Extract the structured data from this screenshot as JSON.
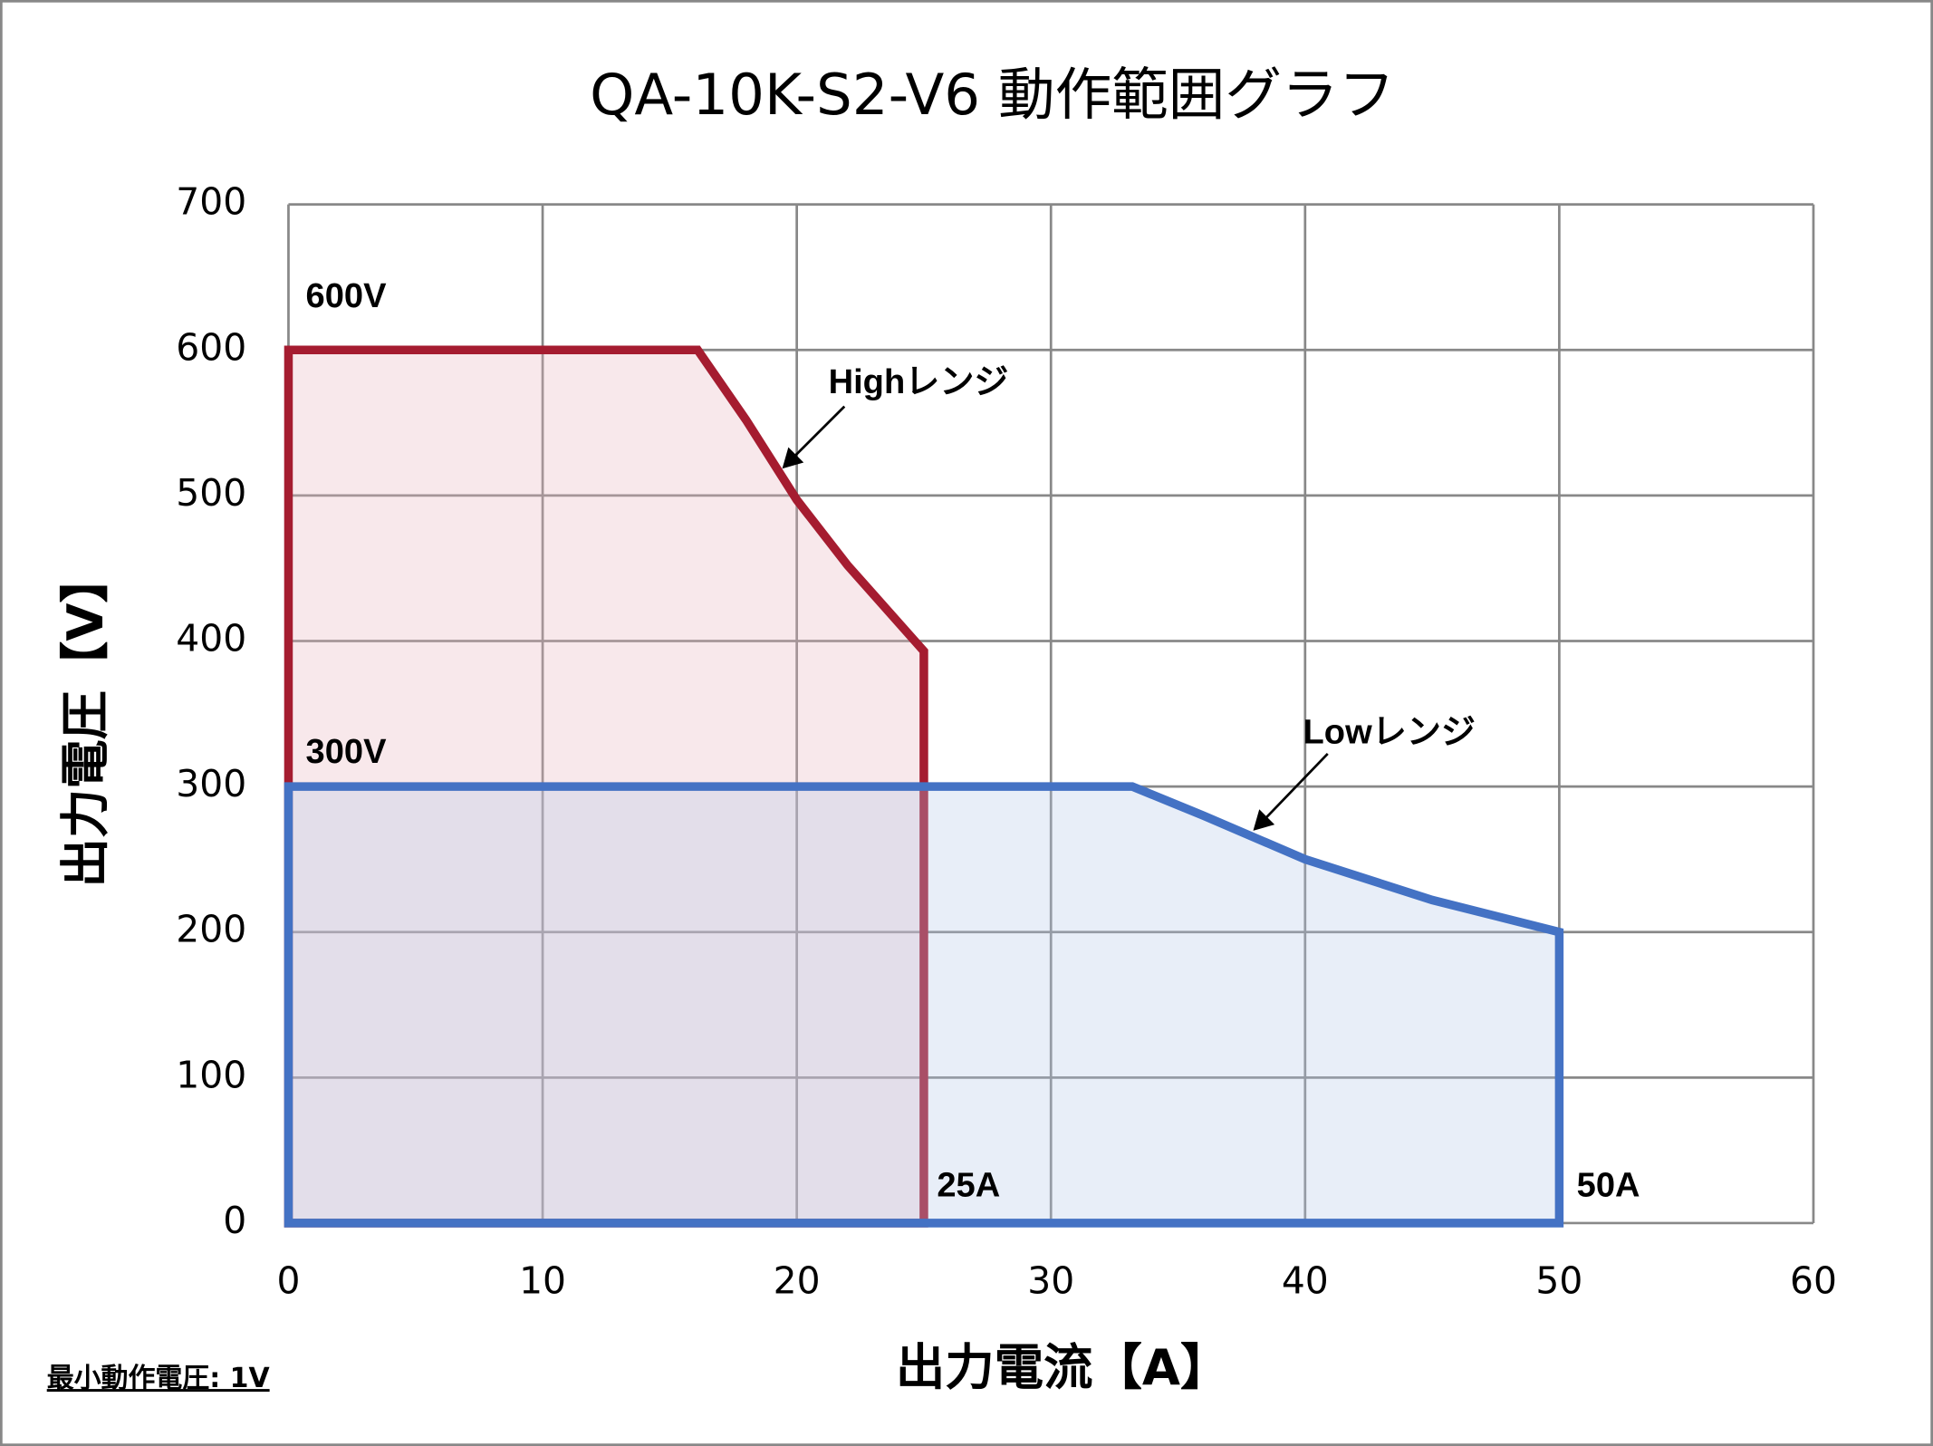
{
  "chart_data": {
    "type": "area",
    "title": "QA-10K-S2-V6  動作範囲グラフ",
    "x_label": "出力電流【A】",
    "y_label": "出力電圧【V】",
    "xlim": [
      0,
      60
    ],
    "xticks": [
      0,
      10,
      20,
      30,
      40,
      50,
      60
    ],
    "ylim": [
      0,
      700
    ],
    "yticks": [
      0,
      100,
      200,
      300,
      400,
      500,
      600,
      700
    ],
    "grid": true,
    "series": [
      {
        "name": "Highレンジ",
        "color": "#a51c30",
        "fill_color": "#e8b4bc",
        "x": [
          0,
          16.1,
          18,
          20,
          22,
          25,
          25,
          0
        ],
        "values": [
          600,
          600,
          552,
          497,
          452,
          393,
          0,
          0
        ]
      },
      {
        "name": "Lowレンジ",
        "color": "#4472c4",
        "fill_color": "#b4c7e7",
        "x": [
          0,
          33.2,
          36,
          40,
          45,
          50,
          50,
          0
        ],
        "values": [
          300,
          300,
          280,
          250,
          222,
          200,
          0,
          0
        ]
      }
    ],
    "annotations": [
      "600V",
      "300V",
      "25A",
      "50A"
    ],
    "footnote": "最小動作電圧: 1V"
  }
}
